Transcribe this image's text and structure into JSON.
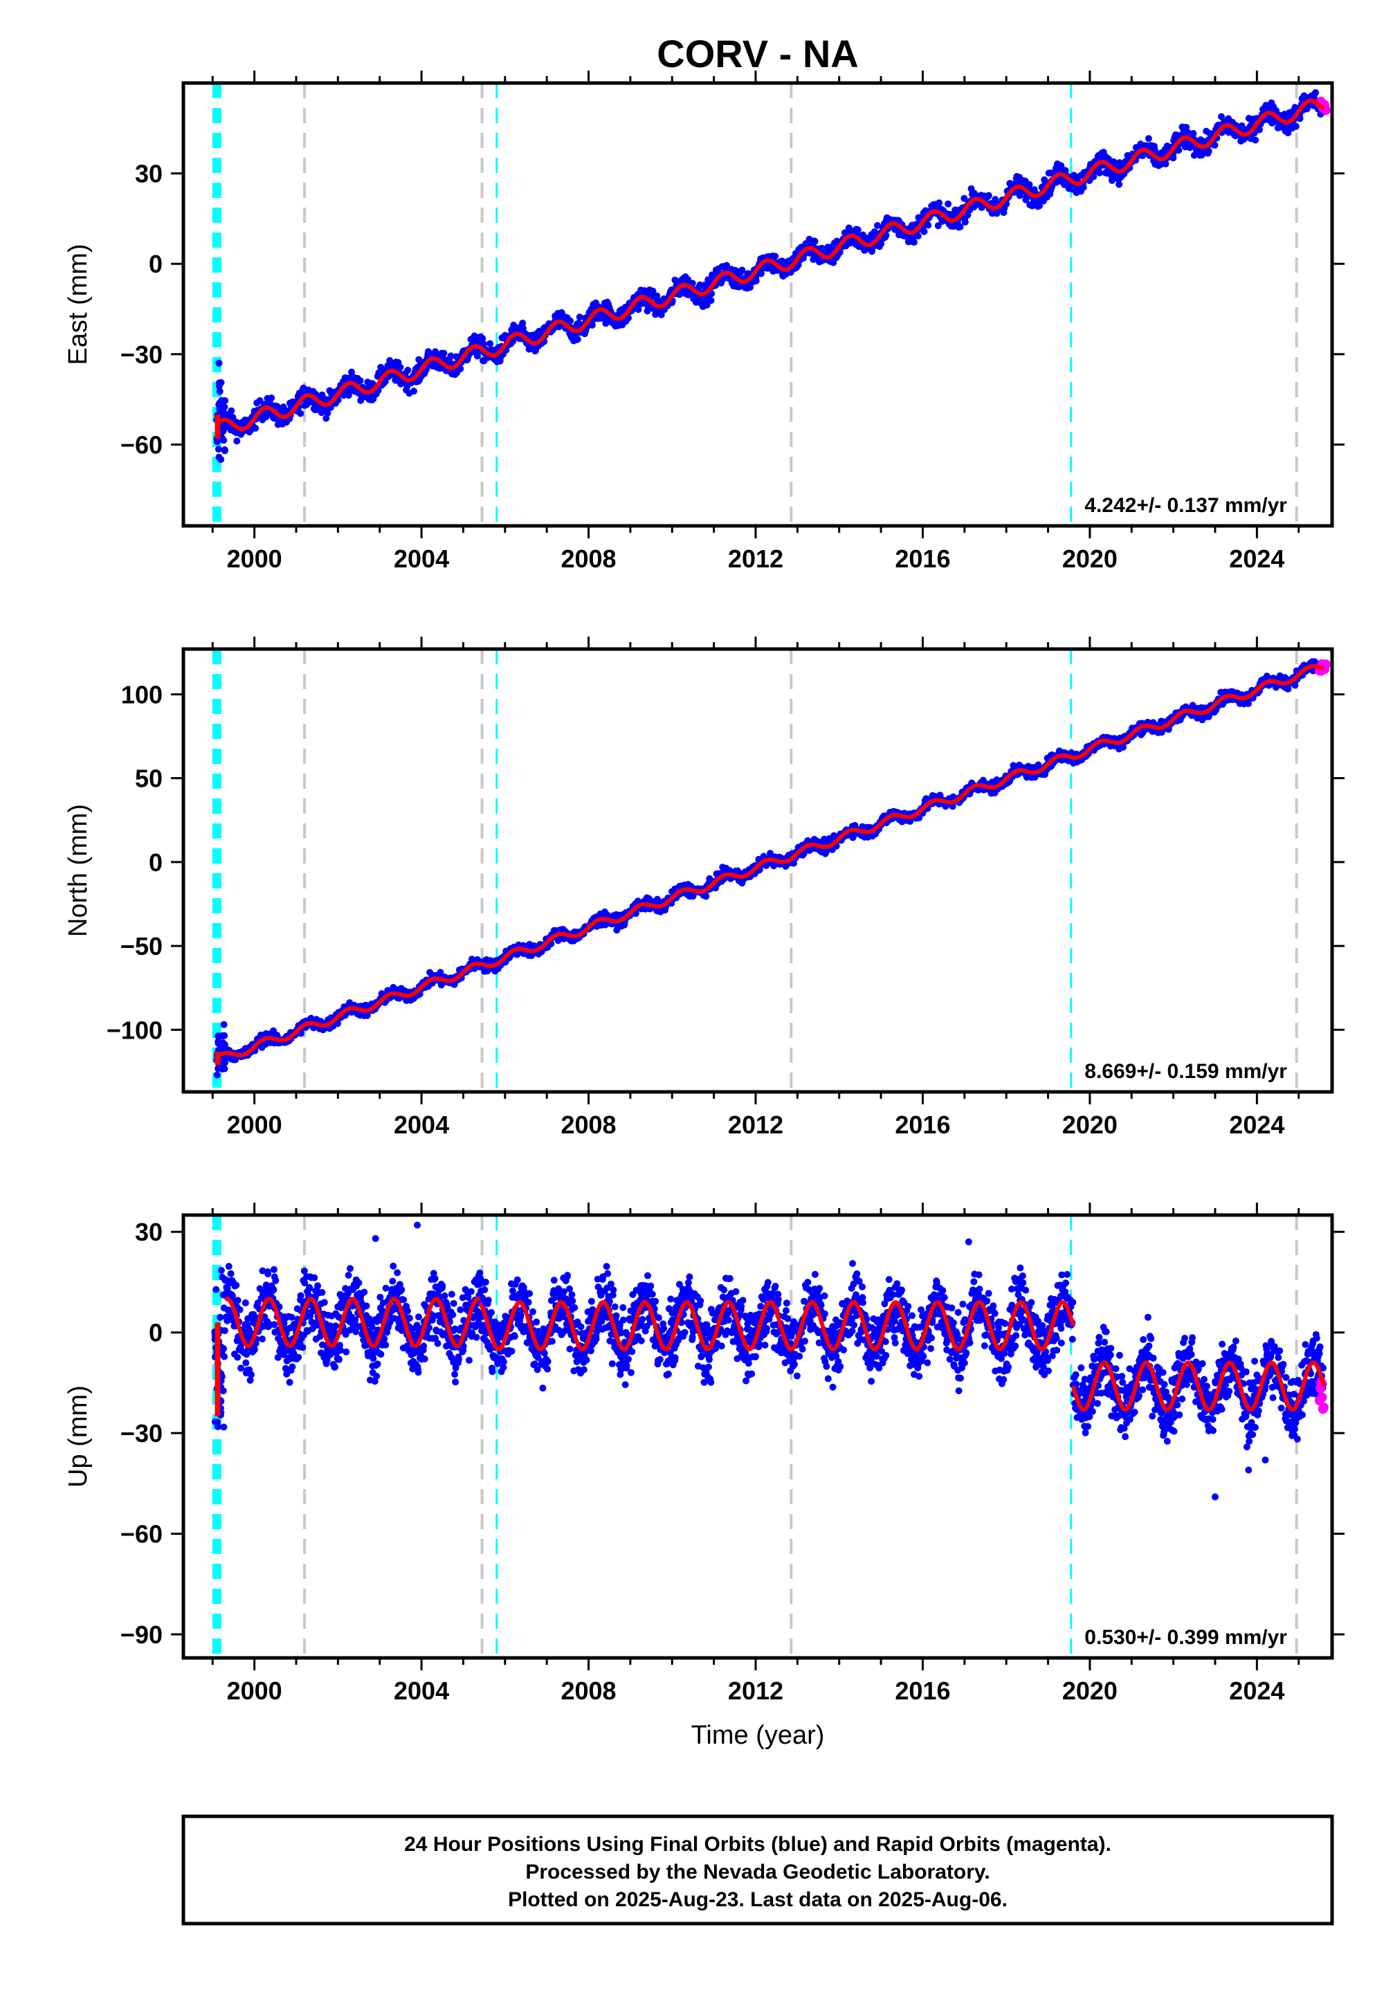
{
  "title": "CORV - NA",
  "colors": {
    "final_orbits": "#0000ff",
    "rapid_orbits": "#ff00ff",
    "model": "#ff0000",
    "equipment_change": "#c8c8c8",
    "earthquake": "#00ffff"
  },
  "chart_data": [
    {
      "type": "scatter",
      "ylabel": "East (mm)",
      "xlim": [
        1998.3,
        2025.8
      ],
      "ylim": [
        -87,
        60
      ],
      "yticks": [
        30,
        0,
        -30,
        -60
      ],
      "xticks": [
        2000,
        2004,
        2008,
        2012,
        2016,
        2020,
        2024
      ],
      "rate_label": "4.242+/- 0.137 mm/yr",
      "trend": {
        "start_year": 1999.1,
        "start_value": -55,
        "end_year": 2025.6,
        "end_value": 53
      },
      "seasonal_amplitude": 2.5,
      "scatter": 2.5,
      "series": [
        {
          "points": [
            [
              1999.1,
              -55
            ],
            [
              2000.0,
              -52
            ],
            [
              2001.0,
              -47
            ],
            [
              2002.0,
              -42
            ],
            [
              2003.0,
              -37
            ],
            [
              2004.0,
              -32
            ],
            [
              2005.0,
              -28
            ],
            [
              2006.0,
              -24
            ],
            [
              2007.0,
              -20
            ],
            [
              2008.0,
              -16
            ],
            [
              2009.0,
              -12
            ],
            [
              2010.0,
              -8
            ],
            [
              2011.0,
              -4
            ],
            [
              2012.0,
              0
            ],
            [
              2013.0,
              4
            ],
            [
              2014.0,
              8
            ],
            [
              2015.0,
              12
            ],
            [
              2016.0,
              16
            ],
            [
              2017.0,
              20
            ],
            [
              2018.0,
              24
            ],
            [
              2019.0,
              27
            ],
            [
              2020.0,
              30
            ],
            [
              2021.0,
              34
            ],
            [
              2022.0,
              38
            ],
            [
              2023.0,
              42
            ],
            [
              2024.0,
              46
            ],
            [
              2025.0,
              50
            ],
            [
              2025.6,
              53
            ]
          ]
        }
      ]
    },
    {
      "type": "scatter",
      "ylabel": "North (mm)",
      "xlim": [
        1998.3,
        2025.8
      ],
      "ylim": [
        -137,
        127
      ],
      "yticks": [
        100,
        50,
        0,
        -50,
        -100
      ],
      "xticks": [
        2000,
        2004,
        2008,
        2012,
        2016,
        2020,
        2024
      ],
      "rate_label": "8.669+/- 0.159 mm/yr",
      "trend": {
        "start_year": 1999.1,
        "start_value": -118,
        "end_year": 2025.6,
        "end_value": 117
      },
      "seasonal_amplitude": 2.5,
      "scatter": 2.5,
      "series": [
        {
          "points": [
            [
              1999.1,
              -118
            ],
            [
              2000.0,
              -112
            ],
            [
              2002.0,
              -95
            ],
            [
              2004.0,
              -78
            ],
            [
              2006.0,
              -60
            ],
            [
              2008.0,
              -43
            ],
            [
              2010.0,
              -25
            ],
            [
              2012.0,
              -5
            ],
            [
              2014.0,
              13
            ],
            [
              2016.0,
              30
            ],
            [
              2018.0,
              48
            ],
            [
              2019.6,
              63
            ],
            [
              2020.0,
              66
            ],
            [
              2022.0,
              83
            ],
            [
              2024.0,
              100
            ],
            [
              2025.6,
              117
            ]
          ]
        }
      ]
    },
    {
      "type": "scatter",
      "ylabel": "Up (mm)",
      "xlabel": "Time (year)",
      "xlim": [
        1998.3,
        2025.8
      ],
      "ylim": [
        -97,
        35
      ],
      "yticks": [
        30,
        0,
        -30,
        -60,
        -90
      ],
      "xticks": [
        2000,
        2004,
        2008,
        2012,
        2016,
        2020,
        2024
      ],
      "rate_label": "0.530+/- 0.399 mm/yr",
      "segments": [
        {
          "start_year": 1999.3,
          "end_year": 2005.4,
          "mean": 3,
          "amplitude": 7
        },
        {
          "start_year": 2005.4,
          "end_year": 2019.6,
          "mean": 2,
          "amplitude": 7
        },
        {
          "start_year": 2019.6,
          "end_year": 2025.6,
          "mean": -16,
          "amplitude": 7
        }
      ],
      "scatter": 7,
      "outliers": [
        [
          2023.0,
          -49
        ],
        [
          2023.8,
          -41
        ],
        [
          2024.2,
          -38
        ],
        [
          2003.9,
          32
        ],
        [
          2002.9,
          28
        ],
        [
          2017.1,
          27
        ]
      ]
    }
  ],
  "offsets": {
    "equipment_change": [
      2001.2,
      2005.45,
      2012.85,
      2024.95
    ],
    "earthquake": [
      1999.05,
      1999.15,
      2005.8,
      2019.55
    ]
  },
  "footer": {
    "line1": "24 Hour Positions Using Final Orbits (blue) and Rapid Orbits (magenta).",
    "line2": "Processed by the Nevada Geodetic Laboratory.",
    "line3": "Plotted on 2025-Aug-23. Last data on 2025-Aug-06."
  }
}
